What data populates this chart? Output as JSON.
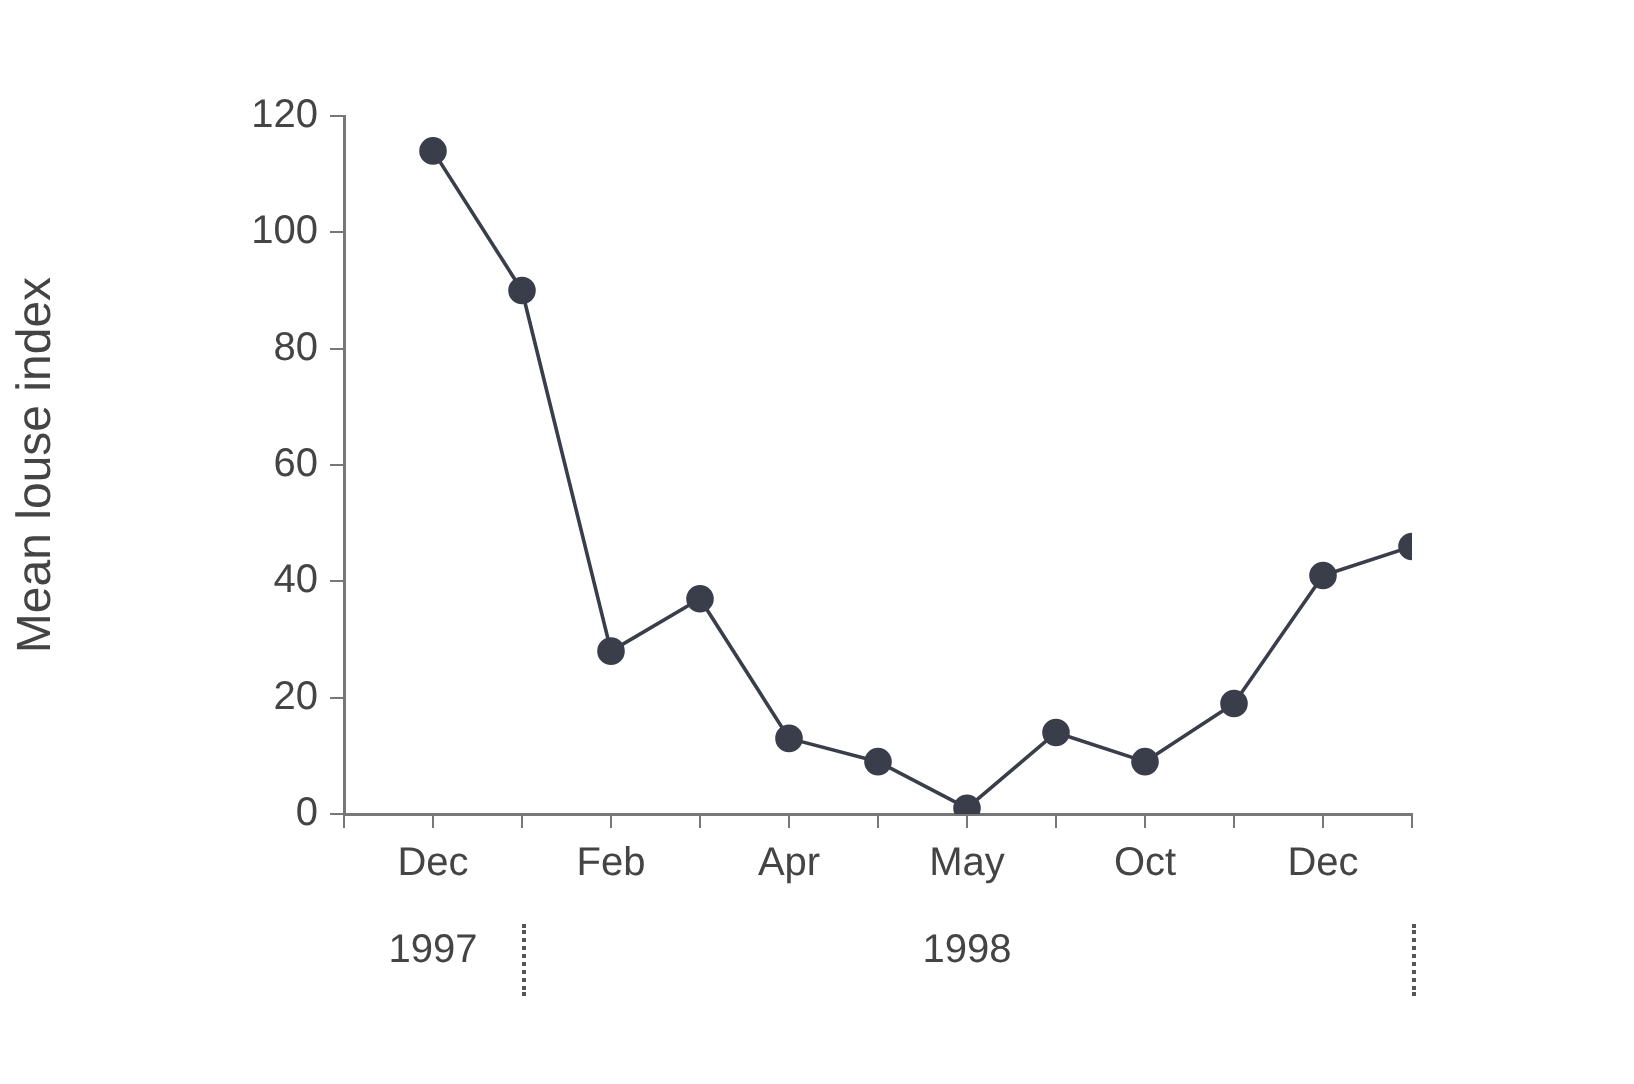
{
  "chart_data": {
    "type": "line",
    "ylabel": "Mean louse index",
    "categories": [
      "Dec",
      null,
      "Feb",
      null,
      "Apr",
      null,
      "May",
      null,
      "Oct",
      null,
      "Dec",
      null
    ],
    "series": [
      {
        "color": "#3a3d4a",
        "values": [
          114,
          90,
          28,
          37,
          13,
          9,
          1,
          14,
          9,
          19,
          41,
          46
        ]
      }
    ],
    "ylim": [
      0,
      120
    ],
    "yticks": [
      0,
      20,
      40,
      60,
      80,
      100,
      120
    ],
    "grid": false,
    "legend": false,
    "marker": "circle",
    "line_style": "solid",
    "annotations": [
      "1997",
      "1998"
    ]
  }
}
